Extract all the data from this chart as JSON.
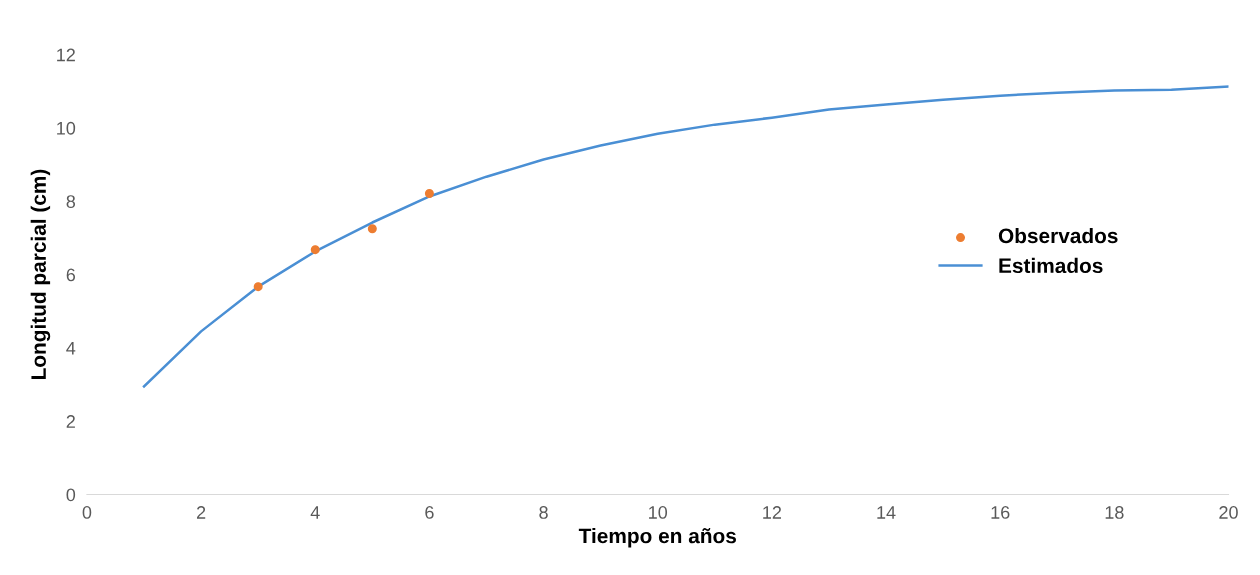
{
  "chart_data": {
    "type": "line",
    "xlabel": "Tiempo en años",
    "ylabel": "Longitud parcial (cm)",
    "xlim": [
      0,
      20
    ],
    "xticks": [
      0,
      2,
      4,
      6,
      8,
      10,
      12,
      14,
      16,
      18,
      20
    ],
    "ylim": [
      0,
      12
    ],
    "yticks": [
      0,
      2,
      4,
      6,
      8,
      10,
      12
    ],
    "grid": false,
    "legend": "right",
    "series": [
      {
        "name": "Observados",
        "type": "scatter",
        "color": "#ed7d31",
        "marker": "circle",
        "x": [
          3,
          4,
          5,
          6
        ],
        "values": [
          5.67,
          6.68,
          7.25,
          8.21
        ]
      },
      {
        "name": "Estimados",
        "type": "line",
        "color": "#4a8fd4",
        "marker": "none",
        "line_style": "solid",
        "x": [
          1,
          2,
          3,
          4,
          5,
          6,
          7,
          8,
          9,
          10,
          11,
          12,
          13,
          14,
          15,
          16,
          17,
          18,
          19,
          20
        ],
        "values": [
          2.95,
          4.45,
          5.67,
          6.63,
          7.42,
          8.13,
          8.67,
          9.14,
          9.52,
          9.84,
          10.09,
          10.28,
          10.5,
          10.64,
          10.77,
          10.88,
          10.96,
          11.02,
          11.04,
          11.13
        ]
      }
    ]
  }
}
